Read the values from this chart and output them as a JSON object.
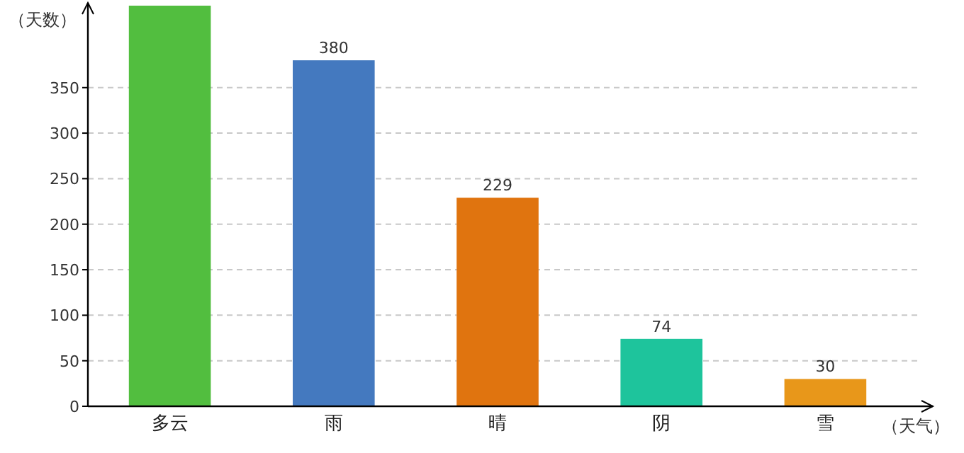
{
  "chart_data": {
    "type": "bar",
    "xlabel": "（天气）",
    "ylabel": "（天数）",
    "categories": [
      "多云",
      "雨",
      "晴",
      "阴",
      "雪"
    ],
    "values": [
      440,
      380,
      229,
      74,
      30
    ],
    "colors": [
      "#52be3f",
      "#4479bf",
      "#e0740f",
      "#1ec49c",
      "#e8971a"
    ],
    "value_labels": [
      null,
      "380",
      "229",
      "74",
      "30"
    ],
    "ylim": [
      0,
      440
    ],
    "yticks": [
      0,
      50,
      100,
      150,
      200,
      250,
      300,
      350
    ],
    "grid": "y"
  }
}
